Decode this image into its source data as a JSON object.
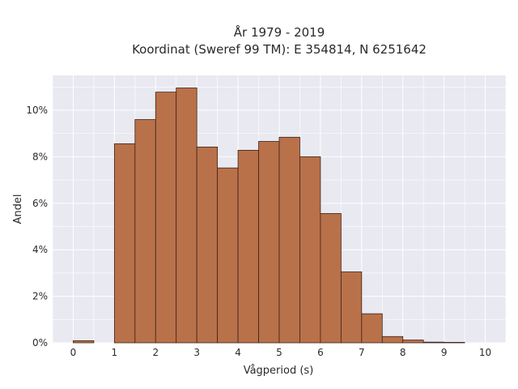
{
  "title_line1": "År 1979 - 2019",
  "title_line2": "Koordinat (Sweref 99 TM): E 354814, N 6251642",
  "chart_data": {
    "type": "bar",
    "xlabel": "Vågperiod (s)",
    "ylabel": "Andel",
    "bin_width": 0.5,
    "bins_start": [
      0,
      0.5,
      1,
      1.5,
      2,
      2.5,
      3,
      3.5,
      4,
      4.5,
      5,
      5.5,
      6,
      6.5,
      7,
      7.5,
      8,
      8.5,
      9,
      9.5
    ],
    "values": [
      0.0009,
      0,
      0.0856,
      0.096,
      0.1078,
      0.1096,
      0.0842,
      0.0752,
      0.0828,
      0.0866,
      0.0884,
      0.08,
      0.0556,
      0.0305,
      0.0125,
      0.0027,
      0.0012,
      0.0003,
      0.0002,
      0
    ],
    "xlim": [
      -0.5,
      10.5
    ],
    "ylim": [
      0,
      0.115
    ],
    "xticks": [
      0,
      1,
      2,
      3,
      4,
      5,
      6,
      7,
      8,
      9,
      10
    ],
    "xtick_labels": [
      "0",
      "1",
      "2",
      "3",
      "4",
      "5",
      "6",
      "7",
      "8",
      "9",
      "10"
    ],
    "yticks": [
      0,
      0.02,
      0.04,
      0.06,
      0.08,
      0.1
    ],
    "ytick_labels": [
      "0%",
      "2%",
      "4%",
      "6%",
      "8%",
      "10%"
    ],
    "grid": true,
    "colors": {
      "bar_fill": "#b9714a",
      "bar_stroke": "#3d2418",
      "plot_bg": "#e9e9f1",
      "grid": "#ffffff"
    }
  }
}
